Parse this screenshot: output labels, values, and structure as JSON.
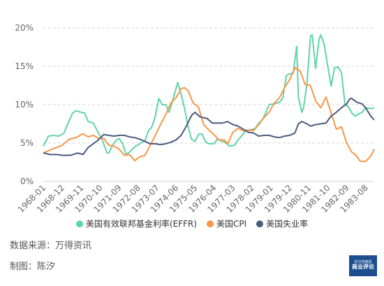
{
  "chart_data": {
    "type": "line",
    "y_ticks": [
      "0%",
      "5%",
      "10%",
      "15%",
      "20%"
    ],
    "ylim": [
      0,
      20
    ],
    "x_ticks": [
      "1968-01",
      "1968-12",
      "1969-11",
      "1970-10",
      "1971-09",
      "1972-08",
      "1973-07",
      "1974-06",
      "1975-05",
      "1976-04",
      "1977-03",
      "1978-02",
      "1979-01",
      "1979-12",
      "1980-11",
      "1981-10",
      "1982-09",
      "1983-08"
    ],
    "grid": "horizontal dashed",
    "legend_position": "bottom",
    "series": [
      {
        "name": "美国有效联邦基金利率(EFFR)",
        "color": "#5fd3a9",
        "points": [
          [
            "1968-01",
            4.6
          ],
          [
            "1968-04",
            5.9
          ],
          [
            "1968-07",
            6.0
          ],
          [
            "1968-10",
            5.9
          ],
          [
            "1969-01",
            6.3
          ],
          [
            "1969-03",
            7.4
          ],
          [
            "1969-06",
            8.9
          ],
          [
            "1969-08",
            9.2
          ],
          [
            "1969-11",
            9.0
          ],
          [
            "1970-01",
            8.9
          ],
          [
            "1970-03",
            7.8
          ],
          [
            "1970-06",
            7.6
          ],
          [
            "1970-09",
            6.3
          ],
          [
            "1970-11",
            5.5
          ],
          [
            "1971-02",
            3.7
          ],
          [
            "1971-03",
            3.7
          ],
          [
            "1971-05",
            4.6
          ],
          [
            "1971-07",
            5.3
          ],
          [
            "1971-09",
            5.6
          ],
          [
            "1971-11",
            4.9
          ],
          [
            "1972-01",
            3.5
          ],
          [
            "1972-03",
            3.8
          ],
          [
            "1972-06",
            4.5
          ],
          [
            "1972-09",
            4.9
          ],
          [
            "1972-12",
            5.3
          ],
          [
            "1973-02",
            6.6
          ],
          [
            "1973-04",
            7.1
          ],
          [
            "1973-06",
            8.5
          ],
          [
            "1973-08",
            10.8
          ],
          [
            "1973-10",
            10.0
          ],
          [
            "1973-12",
            10.0
          ],
          [
            "1974-02",
            9.0
          ],
          [
            "1974-04",
            10.5
          ],
          [
            "1974-07",
            12.9
          ],
          [
            "1974-09",
            11.3
          ],
          [
            "1974-11",
            9.5
          ],
          [
            "1975-01",
            7.1
          ],
          [
            "1975-03",
            5.5
          ],
          [
            "1975-05",
            5.2
          ],
          [
            "1975-07",
            6.1
          ],
          [
            "1975-09",
            6.2
          ],
          [
            "1975-11",
            5.2
          ],
          [
            "1976-01",
            4.9
          ],
          [
            "1976-04",
            4.9
          ],
          [
            "1976-06",
            5.5
          ],
          [
            "1976-08",
            5.3
          ],
          [
            "1976-11",
            5.0
          ],
          [
            "1977-01",
            4.6
          ],
          [
            "1977-04",
            4.7
          ],
          [
            "1977-06",
            5.4
          ],
          [
            "1977-08",
            5.9
          ],
          [
            "1977-10",
            6.5
          ],
          [
            "1978-01",
            6.7
          ],
          [
            "1978-04",
            6.9
          ],
          [
            "1978-06",
            7.6
          ],
          [
            "1978-08",
            8.0
          ],
          [
            "1978-10",
            8.9
          ],
          [
            "1978-12",
            10.0
          ],
          [
            "1979-03",
            10.1
          ],
          [
            "1979-06",
            10.3
          ],
          [
            "1979-08",
            10.9
          ],
          [
            "1979-10",
            13.8
          ],
          [
            "1979-12",
            14.0
          ],
          [
            "1980-02",
            14.1
          ],
          [
            "1980-04",
            17.6
          ],
          [
            "1980-05",
            11.0
          ],
          [
            "1980-07",
            9.0
          ],
          [
            "1980-08",
            9.6
          ],
          [
            "1980-10",
            12.8
          ],
          [
            "1980-12",
            18.9
          ],
          [
            "1981-01",
            19.1
          ],
          [
            "1981-03",
            14.7
          ],
          [
            "1981-05",
            18.5
          ],
          [
            "1981-06",
            19.1
          ],
          [
            "1981-08",
            17.8
          ],
          [
            "1981-10",
            15.1
          ],
          [
            "1981-12",
            12.4
          ],
          [
            "1982-02",
            14.8
          ],
          [
            "1982-04",
            14.9
          ],
          [
            "1982-06",
            14.2
          ],
          [
            "1982-08",
            10.1
          ],
          [
            "1982-10",
            9.7
          ],
          [
            "1982-12",
            8.9
          ],
          [
            "1983-02",
            8.5
          ],
          [
            "1983-04",
            8.8
          ],
          [
            "1983-06",
            9.0
          ],
          [
            "1983-08",
            9.6
          ],
          [
            "1983-10",
            9.5
          ],
          [
            "1983-12",
            9.5
          ],
          [
            "1984-01",
            9.6
          ]
        ]
      },
      {
        "name": "美国CPI",
        "color": "#f79646",
        "points": [
          [
            "1968-01",
            3.7
          ],
          [
            "1968-06",
            4.2
          ],
          [
            "1968-12",
            4.7
          ],
          [
            "1969-04",
            5.5
          ],
          [
            "1969-08",
            5.7
          ],
          [
            "1969-12",
            6.2
          ],
          [
            "1970-03",
            5.8
          ],
          [
            "1970-06",
            6.0
          ],
          [
            "1970-09",
            5.6
          ],
          [
            "1970-12",
            5.6
          ],
          [
            "1971-03",
            4.7
          ],
          [
            "1971-06",
            4.6
          ],
          [
            "1971-09",
            4.2
          ],
          [
            "1971-12",
            3.4
          ],
          [
            "1972-03",
            3.5
          ],
          [
            "1972-06",
            2.7
          ],
          [
            "1972-09",
            3.2
          ],
          [
            "1972-12",
            3.4
          ],
          [
            "1973-03",
            4.7
          ],
          [
            "1973-06",
            6.0
          ],
          [
            "1973-09",
            7.4
          ],
          [
            "1973-12",
            8.7
          ],
          [
            "1974-03",
            10.2
          ],
          [
            "1974-06",
            10.9
          ],
          [
            "1974-09",
            12.1
          ],
          [
            "1974-11",
            12.2
          ],
          [
            "1975-01",
            11.8
          ],
          [
            "1975-04",
            10.2
          ],
          [
            "1975-07",
            9.7
          ],
          [
            "1975-10",
            7.4
          ],
          [
            "1976-01",
            6.7
          ],
          [
            "1976-04",
            6.1
          ],
          [
            "1976-07",
            5.4
          ],
          [
            "1976-10",
            5.4
          ],
          [
            "1976-12",
            4.9
          ],
          [
            "1977-03",
            6.4
          ],
          [
            "1977-06",
            6.9
          ],
          [
            "1977-09",
            6.6
          ],
          [
            "1977-12",
            6.7
          ],
          [
            "1978-03",
            6.6
          ],
          [
            "1978-06",
            7.4
          ],
          [
            "1978-09",
            8.3
          ],
          [
            "1978-12",
            9.0
          ],
          [
            "1979-03",
            10.2
          ],
          [
            "1979-06",
            10.9
          ],
          [
            "1979-09",
            12.2
          ],
          [
            "1979-12",
            13.3
          ],
          [
            "1980-03",
            14.8
          ],
          [
            "1980-06",
            14.4
          ],
          [
            "1980-09",
            12.6
          ],
          [
            "1980-12",
            12.5
          ],
          [
            "1981-03",
            10.5
          ],
          [
            "1981-06",
            9.6
          ],
          [
            "1981-09",
            11.0
          ],
          [
            "1981-12",
            8.9
          ],
          [
            "1982-03",
            6.8
          ],
          [
            "1982-06",
            7.1
          ],
          [
            "1982-09",
            5.0
          ],
          [
            "1982-12",
            3.8
          ],
          [
            "1983-02",
            3.5
          ],
          [
            "1983-05",
            2.6
          ],
          [
            "1983-08",
            2.6
          ],
          [
            "1983-11",
            3.3
          ],
          [
            "1984-01",
            4.2
          ]
        ]
      },
      {
        "name": "美国失业率",
        "color": "#4a5a7e",
        "points": [
          [
            "1968-01",
            3.7
          ],
          [
            "1968-05",
            3.5
          ],
          [
            "1968-09",
            3.5
          ],
          [
            "1968-12",
            3.4
          ],
          [
            "1969-05",
            3.4
          ],
          [
            "1969-09",
            3.7
          ],
          [
            "1969-12",
            3.5
          ],
          [
            "1970-03",
            4.4
          ],
          [
            "1970-06",
            4.9
          ],
          [
            "1970-09",
            5.4
          ],
          [
            "1970-12",
            6.1
          ],
          [
            "1971-03",
            6.0
          ],
          [
            "1971-06",
            5.9
          ],
          [
            "1971-09",
            6.0
          ],
          [
            "1971-12",
            6.0
          ],
          [
            "1972-03",
            5.8
          ],
          [
            "1972-06",
            5.7
          ],
          [
            "1972-09",
            5.5
          ],
          [
            "1972-12",
            5.2
          ],
          [
            "1973-03",
            4.9
          ],
          [
            "1973-06",
            4.9
          ],
          [
            "1973-09",
            4.8
          ],
          [
            "1973-12",
            4.9
          ],
          [
            "1974-03",
            5.1
          ],
          [
            "1974-06",
            5.4
          ],
          [
            "1974-09",
            6.0
          ],
          [
            "1974-12",
            7.2
          ],
          [
            "1975-03",
            8.6
          ],
          [
            "1975-05",
            9.0
          ],
          [
            "1975-08",
            8.4
          ],
          [
            "1975-12",
            8.2
          ],
          [
            "1976-03",
            7.6
          ],
          [
            "1976-06",
            7.6
          ],
          [
            "1976-09",
            7.6
          ],
          [
            "1976-12",
            7.8
          ],
          [
            "1977-03",
            7.4
          ],
          [
            "1977-06",
            7.2
          ],
          [
            "1977-09",
            6.8
          ],
          [
            "1977-12",
            6.4
          ],
          [
            "1978-03",
            6.3
          ],
          [
            "1978-06",
            5.9
          ],
          [
            "1978-09",
            6.0
          ],
          [
            "1978-12",
            6.0
          ],
          [
            "1979-03",
            5.8
          ],
          [
            "1979-06",
            5.7
          ],
          [
            "1979-09",
            5.9
          ],
          [
            "1979-12",
            6.0
          ],
          [
            "1980-03",
            6.3
          ],
          [
            "1980-05",
            7.5
          ],
          [
            "1980-07",
            7.8
          ],
          [
            "1980-10",
            7.5
          ],
          [
            "1980-12",
            7.2
          ],
          [
            "1981-03",
            7.4
          ],
          [
            "1981-06",
            7.5
          ],
          [
            "1981-09",
            7.6
          ],
          [
            "1981-12",
            8.5
          ],
          [
            "1982-03",
            9.0
          ],
          [
            "1982-06",
            9.6
          ],
          [
            "1982-09",
            10.1
          ],
          [
            "1982-11",
            10.8
          ],
          [
            "1982-12",
            10.8
          ],
          [
            "1983-03",
            10.3
          ],
          [
            "1983-06",
            10.1
          ],
          [
            "1983-08",
            9.6
          ],
          [
            "1983-11",
            8.5
          ],
          [
            "1984-01",
            8.0
          ]
        ]
      }
    ]
  },
  "footer": {
    "source": "数据来源：万得资讯",
    "credit": "制图：陈汐"
  },
  "logo": {
    "top": "经济观察报",
    "main": "商业评论"
  }
}
